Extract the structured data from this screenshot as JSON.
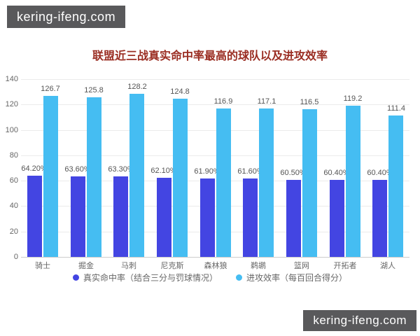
{
  "watermarks": {
    "top": "kering-ifeng.com",
    "bottom": "kering-ifeng.com"
  },
  "colors": {
    "title": "#9a2d22",
    "grid_line": "#ebebeb",
    "axis_line": "#cccccc",
    "tick_text": "#666666",
    "value_text": "#555555",
    "legend_text": "#666666",
    "watermark_bg": "#59595b",
    "watermark_text": "#ffffff",
    "background": "#ffffff"
  },
  "chart_data": {
    "type": "bar",
    "title": "联盟近三战真实命中率最高的球队以及进攻效率",
    "categories": [
      "骑士",
      "掘金",
      "马刺",
      "尼克斯",
      "森林狼",
      "鹈鹕",
      "篮网",
      "开拓者",
      "湖人"
    ],
    "series": [
      {
        "name": "真实命中率（结合三分与罚球情况）",
        "color": "#4345e2",
        "values": [
          64.2,
          63.6,
          63.3,
          62.1,
          61.9,
          61.6,
          60.5,
          60.4,
          60.4
        ],
        "labels": [
          "64.20%",
          "63.60%",
          "63.30%",
          "62.10%",
          "61.90%",
          "61.60%",
          "60.50%",
          "60.40%",
          "60.40%"
        ]
      },
      {
        "name": "进攻效率（每百回合得分）",
        "color": "#45bdf2",
        "values": [
          126.7,
          125.8,
          128.2,
          124.8,
          116.9,
          117.1,
          116.5,
          119.2,
          111.4
        ],
        "labels": [
          "126.7",
          "125.8",
          "128.2",
          "124.8",
          "116.9",
          "117.1",
          "116.5",
          "119.2",
          "111.4"
        ]
      }
    ],
    "ylim": [
      0,
      140
    ],
    "yticks": [
      0,
      20,
      40,
      60,
      80,
      100,
      120,
      140
    ],
    "grid": true,
    "legend_position": "bottom",
    "xlabel": "",
    "ylabel": ""
  }
}
